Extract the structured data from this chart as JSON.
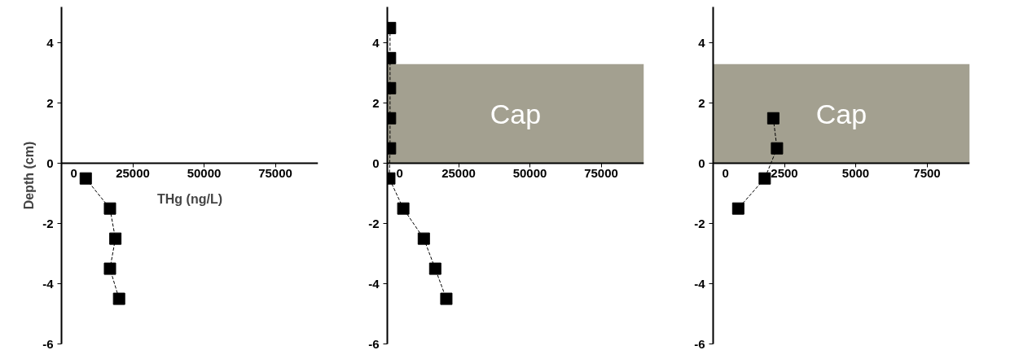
{
  "chart_data": [
    {
      "type": "line",
      "xlabel": "THg (ng/L)",
      "ylabel": "Depth (cm)",
      "xlim": [
        0,
        90000
      ],
      "ylim": [
        -6,
        5.2
      ],
      "xticks": [
        0,
        25000,
        50000,
        75000
      ],
      "yticks": [
        -6,
        -4,
        -2,
        0,
        2,
        4
      ],
      "marker": "square",
      "line_style": "dashed",
      "grid": false,
      "series": [
        {
          "color": "#000000",
          "x": [
            8500,
            17000,
            18900,
            17000,
            20200
          ],
          "values": [
            -0.5,
            -1.5,
            -2.5,
            -3.5,
            -4.5
          ]
        }
      ]
    },
    {
      "type": "line",
      "xlim": [
        0,
        90000
      ],
      "ylim": [
        -6,
        5.2
      ],
      "xticks": [
        0,
        25000,
        50000,
        75000
      ],
      "yticks": [
        -6,
        -4,
        -2,
        0,
        2,
        4
      ],
      "marker": "square",
      "line_style": "dashed",
      "grid": false,
      "bands": [
        {
          "axis": "y",
          "from": 0,
          "to": 3.3,
          "label": "Cap",
          "color": "#a3a090"
        }
      ],
      "series": [
        {
          "color": "#000000",
          "x": [
            950,
            950,
            950,
            950,
            950,
            700,
            5600,
            12800,
            16800,
            20700
          ],
          "values": [
            4.5,
            3.5,
            2.5,
            1.5,
            0.5,
            -0.5,
            -1.5,
            -2.5,
            -3.5,
            -4.5
          ]
        }
      ]
    },
    {
      "type": "line",
      "xlim": [
        0,
        9000
      ],
      "ylim": [
        -6,
        5.2
      ],
      "xticks": [
        0,
        2500,
        5000,
        7500
      ],
      "yticks": [
        -6,
        -4,
        -2,
        0,
        2,
        4
      ],
      "marker": "square",
      "line_style": "dashed",
      "grid": false,
      "bands": [
        {
          "axis": "y",
          "from": 0,
          "to": 3.3,
          "label": "Cap",
          "color": "#a3a090"
        }
      ],
      "series": [
        {
          "color": "#000000",
          "x": [
            2110,
            2240,
            1810,
            880
          ],
          "values": [
            1.5,
            0.5,
            -0.5,
            -1.5
          ]
        }
      ]
    }
  ]
}
